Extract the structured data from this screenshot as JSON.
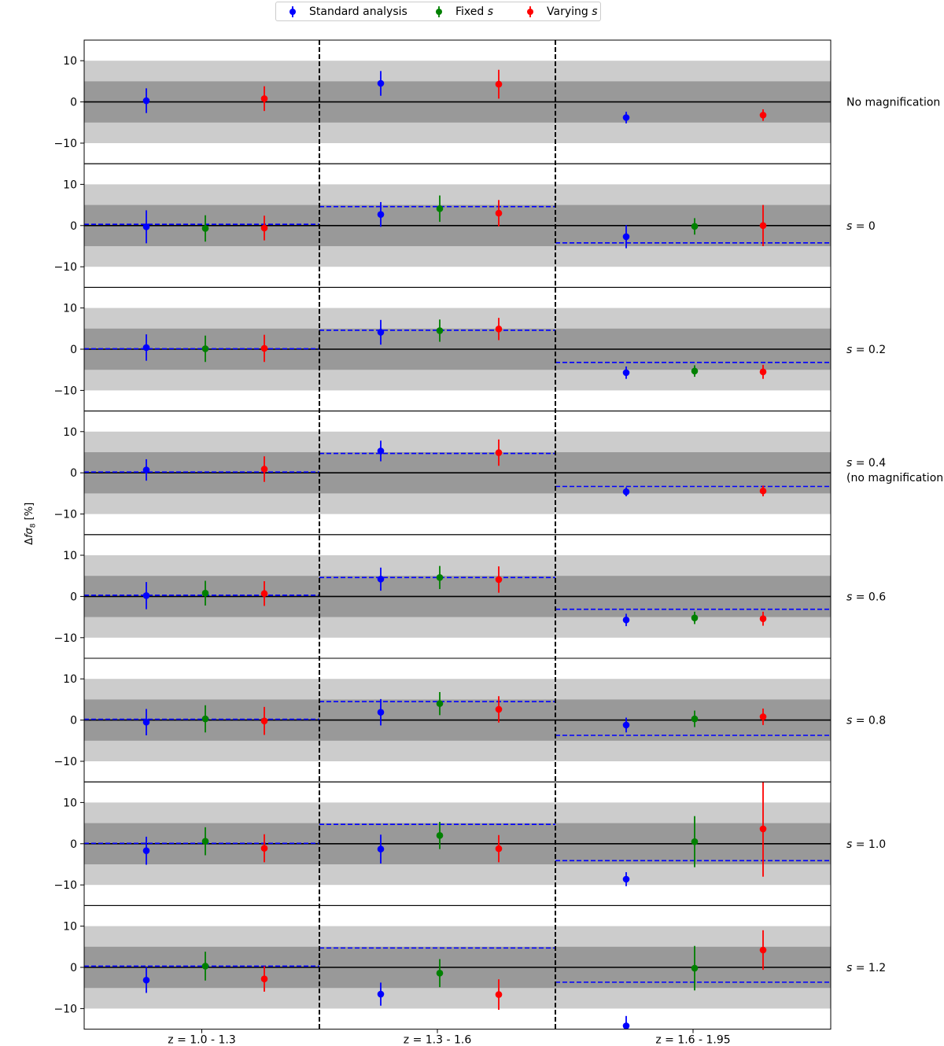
{
  "colors": {
    "standard": "#0000ff",
    "fixed": "#008000",
    "varying": "#ff0000",
    "band_inner": "#999999",
    "band_outer": "#cccccc",
    "reference_line": "#0000ff"
  },
  "legend": {
    "placement": "top-center",
    "items": [
      {
        "key": "standard",
        "label": "Standard analysis",
        "math": null
      },
      {
        "key": "fixed",
        "label": "Fixed ",
        "math": "s"
      },
      {
        "key": "varying",
        "label": "Varying ",
        "math": "s"
      }
    ]
  },
  "ylabel": {
    "prefix": "Δ",
    "math": "fσ",
    "sub": "8",
    "suffix": " [%]"
  },
  "ylim": [
    -15,
    15
  ],
  "yticks": [
    10,
    0,
    -10
  ],
  "bands": {
    "inner": 5,
    "outer": 10
  },
  "xlabels": [
    "z = 1.0 - 1.3",
    "z = 1.3 - 1.6",
    "z = 1.6 - 1.95"
  ],
  "chart_data": {
    "type": "scatter",
    "description": "Error-bar points per redshift bin and magnification slope s",
    "bins": [
      "z = 1.0 - 1.3",
      "z = 1.3 - 1.6",
      "z = 1.6 - 1.95"
    ],
    "ylim": [
      -15,
      15
    ],
    "ylabel": "Δfσ8 [%]",
    "grid": false,
    "panels": [
      {
        "label_prefix": "No magnification",
        "label_var": "",
        "label_value": "",
        "label_note": "",
        "reference": null,
        "points": {
          "standard": [
            [
              0.3,
              3.0
            ],
            [
              4.5,
              3.0
            ],
            [
              -3.8,
              1.4
            ]
          ],
          "fixed": [
            null,
            null,
            null
          ],
          "varying": [
            [
              0.8,
              3.0
            ],
            [
              4.3,
              3.5
            ],
            [
              -3.2,
              1.4
            ]
          ]
        }
      },
      {
        "label_prefix": "",
        "label_var": "s",
        "label_value": " = 0",
        "label_note": "",
        "reference": [
          0.3,
          4.6,
          -4.2
        ],
        "points": {
          "standard": [
            [
              -0.3,
              4.0
            ],
            [
              2.7,
              3.0
            ],
            [
              -2.7,
              2.8
            ]
          ],
          "fixed": [
            [
              -0.7,
              3.2
            ],
            [
              4.1,
              3.2
            ],
            [
              -0.2,
              2.0
            ]
          ],
          "varying": [
            [
              -0.6,
              3.0
            ],
            [
              3.0,
              3.2
            ],
            [
              0.0,
              5.0
            ]
          ]
        }
      },
      {
        "label_prefix": "",
        "label_var": "s",
        "label_value": " = 0.2",
        "label_note": "",
        "reference": [
          0.1,
          4.6,
          -3.2
        ],
        "points": {
          "standard": [
            [
              0.4,
              3.2
            ],
            [
              4.1,
              3.0
            ],
            [
              -5.7,
              1.5
            ]
          ],
          "fixed": [
            [
              0.1,
              3.2
            ],
            [
              4.5,
              2.7
            ],
            [
              -5.3,
              1.4
            ]
          ],
          "varying": [
            [
              0.2,
              3.3
            ],
            [
              4.9,
              2.7
            ],
            [
              -5.5,
              1.7
            ]
          ]
        }
      },
      {
        "label_prefix": "",
        "label_var": "s",
        "label_value": " = 0.4",
        "label_note": "(no magnification)",
        "reference": [
          0.2,
          4.7,
          -3.3
        ],
        "points": {
          "standard": [
            [
              0.7,
              2.6
            ],
            [
              5.3,
              2.5
            ],
            [
              -4.6,
              1.1
            ]
          ],
          "fixed": [
            null,
            null,
            null
          ],
          "varying": [
            [
              0.9,
              3.1
            ],
            [
              4.9,
              3.2
            ],
            [
              -4.4,
              1.3
            ]
          ]
        }
      },
      {
        "label_prefix": "",
        "label_var": "s",
        "label_value": " = 0.6",
        "label_note": "",
        "reference": [
          0.3,
          4.6,
          -3.1
        ],
        "points": {
          "standard": [
            [
              0.2,
              3.3
            ],
            [
              4.2,
              2.8
            ],
            [
              -5.7,
              1.5
            ]
          ],
          "fixed": [
            [
              0.8,
              3.0
            ],
            [
              4.6,
              2.8
            ],
            [
              -5.2,
              1.5
            ]
          ],
          "varying": [
            [
              0.7,
              3.0
            ],
            [
              4.1,
              3.2
            ],
            [
              -5.4,
              1.7
            ]
          ]
        }
      },
      {
        "label_prefix": "",
        "label_var": "s",
        "label_value": " = 0.8",
        "label_note": "",
        "reference": [
          0.2,
          4.5,
          -3.7
        ],
        "points": {
          "standard": [
            [
              -0.5,
              3.2
            ],
            [
              1.9,
              3.2
            ],
            [
              -1.2,
              1.8
            ]
          ],
          "fixed": [
            [
              0.3,
              3.3
            ],
            [
              4.0,
              2.8
            ],
            [
              0.3,
              2.0
            ]
          ],
          "varying": [
            [
              -0.2,
              3.4
            ],
            [
              2.6,
              3.2
            ],
            [
              0.8,
              2.0
            ]
          ]
        }
      },
      {
        "label_prefix": "",
        "label_var": "s",
        "label_value": " = 1.0",
        "label_note": "",
        "reference": [
          0.1,
          4.7,
          -4.1
        ],
        "points": {
          "standard": [
            [
              -1.7,
              3.4
            ],
            [
              -1.3,
              3.5
            ],
            [
              -8.6,
              1.7
            ]
          ],
          "fixed": [
            [
              0.6,
              3.4
            ],
            [
              2.0,
              3.3
            ],
            [
              0.5,
              6.2
            ]
          ],
          "varying": [
            [
              -1.1,
              3.4
            ],
            [
              -1.2,
              3.3
            ],
            [
              3.6,
              11.6
            ]
          ]
        }
      },
      {
        "label_prefix": "",
        "label_var": "s",
        "label_value": " = 1.2",
        "label_note": "",
        "reference": [
          0.3,
          4.7,
          -3.6
        ],
        "points": {
          "standard": [
            [
              -3.1,
              3.1
            ],
            [
              -6.5,
              2.8
            ],
            [
              -14.2,
              2.4
            ]
          ],
          "fixed": [
            [
              0.3,
              3.5
            ],
            [
              -1.4,
              3.4
            ],
            [
              -0.2,
              5.4
            ]
          ],
          "varying": [
            [
              -2.8,
              3.1
            ],
            [
              -6.6,
              3.7
            ],
            [
              4.2,
              4.8
            ]
          ]
        }
      }
    ]
  }
}
